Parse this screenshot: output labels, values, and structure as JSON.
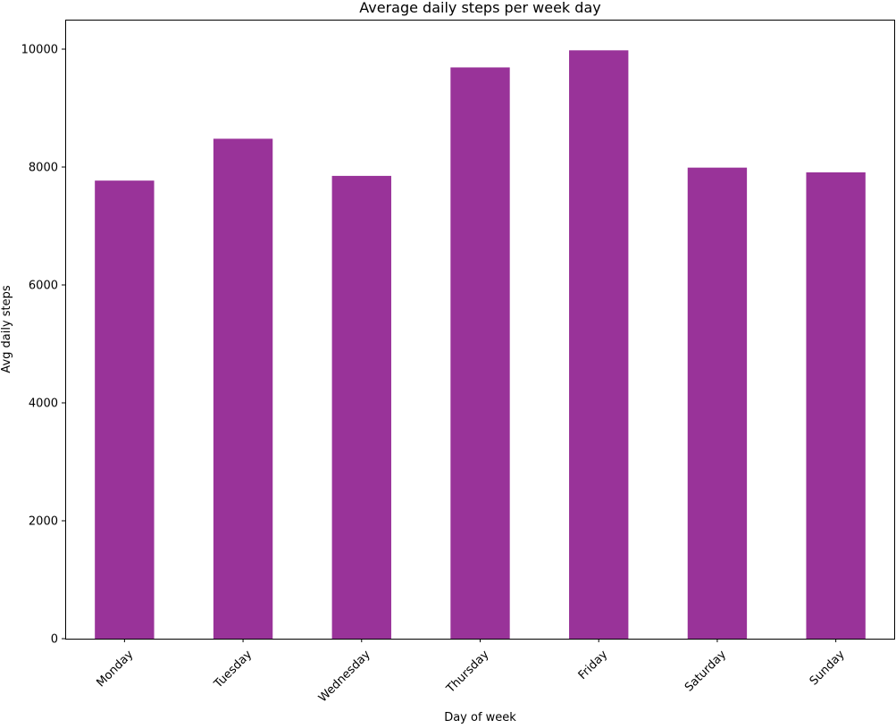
{
  "chart_data": {
    "type": "bar",
    "title": "Average daily steps per week day",
    "xlabel": "Day of week",
    "ylabel": "Avg daily steps",
    "categories": [
      "Monday",
      "Tuesday",
      "Wednesday",
      "Thursday",
      "Friday",
      "Saturday",
      "Sunday"
    ],
    "values": [
      7770,
      8480,
      7850,
      9690,
      9980,
      7990,
      7910
    ],
    "ylim": [
      0,
      10500
    ],
    "yticks": [
      0,
      2000,
      4000,
      6000,
      8000,
      10000
    ],
    "bar_color": "#993399",
    "grid": false,
    "legend": "none",
    "xtick_rotation_deg": 45
  }
}
